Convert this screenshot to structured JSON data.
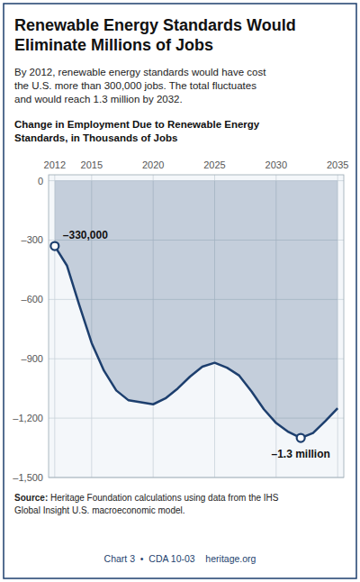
{
  "chart_data": {
    "type": "area",
    "title": "Renewable Energy Standards Would\nEliminate Millions of Jobs",
    "subtitle": "By 2012, renewable energy standards would have cost\nthe U.S. more than 300,000 jobs. The total fluctuates\nand would reach 1.3 million by 2032.",
    "ylabel": "Change in Employment Due to Renewable Energy\nStandards, in Thousands of Jobs",
    "source": "Source: Heritage Foundation calculations using data from the IHS\nGlobal Insight U.S. macroeconomic model.",
    "footer": "Chart 3  •  CDA 10-03    heritage.org",
    "x": [
      2012,
      2013,
      2014,
      2015,
      2016,
      2017,
      2018,
      2019,
      2020,
      2021,
      2022,
      2023,
      2024,
      2025,
      2026,
      2027,
      2028,
      2029,
      2030,
      2031,
      2032,
      2033,
      2034,
      2035
    ],
    "values": [
      -330,
      -430,
      -630,
      -820,
      -960,
      -1060,
      -1110,
      -1120,
      -1130,
      -1100,
      -1050,
      -990,
      -940,
      -920,
      -945,
      -985,
      -1065,
      -1155,
      -1225,
      -1270,
      -1300,
      -1275,
      -1215,
      -1150
    ],
    "color": "#1d3f6e",
    "annotations": [
      {
        "text": "–330,000",
        "x": 2012,
        "y": -330
      },
      {
        "text": "–1.3 million",
        "x": 2032,
        "y": -1300
      }
    ],
    "xlim": [
      2011.5,
      2035.5
    ],
    "ylim": [
      -1500,
      30
    ],
    "xticks": [
      2012,
      2015,
      2020,
      2025,
      2030,
      2035
    ],
    "yticks": [
      0,
      {
        "value": -300,
        "label": "–300"
      },
      {
        "value": -600,
        "label": "–600"
      },
      {
        "value": -900,
        "label": "–900"
      },
      {
        "value": -1200,
        "label": "–1,200"
      },
      {
        "value": -1500,
        "label": "–1,500"
      }
    ],
    "grid": true
  }
}
